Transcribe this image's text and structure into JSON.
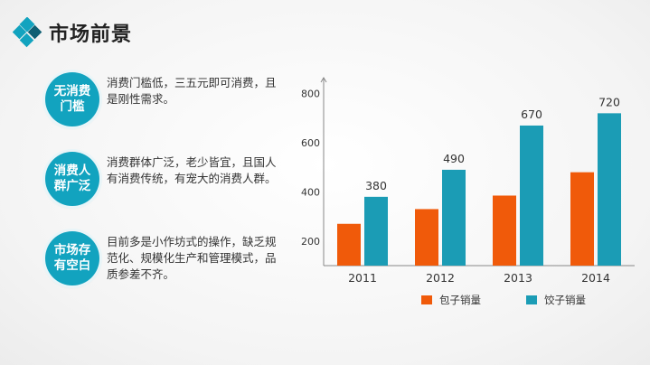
{
  "header": {
    "title": "市场前景",
    "logo_icon": "diamond-logo-icon",
    "accent": "#12a3bf",
    "logo_dark": "#0e5f73"
  },
  "points": [
    {
      "badge": [
        "无消费",
        "门槛"
      ],
      "text": "消费门槛低，三五元即可消费，且是刚性需求。"
    },
    {
      "badge": [
        "消费人",
        "群广泛"
      ],
      "text": "消费群体广泛，老少皆宜，且国人有消费传统，有宠大的消费人群。"
    },
    {
      "badge": [
        "市场存",
        "有空白"
      ],
      "text": "目前多是小作坊式的操作，缺乏规范化、规模化生产和管理模式，品质参差不齐。"
    }
  ],
  "chart_data": {
    "type": "bar",
    "categories": [
      "2011",
      "2012",
      "2013",
      "2014"
    ],
    "series": [
      {
        "name": "包子销量",
        "color": "#f05a0a",
        "values": [
          270,
          330,
          385,
          480
        ]
      },
      {
        "name": "饺子销量",
        "color": "#1b9cb5",
        "values": [
          380,
          490,
          670,
          720
        ]
      }
    ],
    "data_labels": {
      "饺子销量": [
        "380",
        "490",
        "670",
        "720"
      ]
    },
    "yticks": [
      "200",
      "400",
      "600",
      "800"
    ],
    "ylim": [
      100,
      850
    ],
    "grid": false,
    "legend_position": "bottom"
  }
}
